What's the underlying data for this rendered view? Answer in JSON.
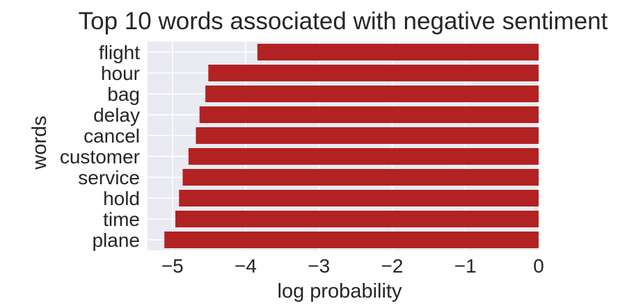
{
  "chart_data": {
    "type": "bar",
    "orientation": "horizontal",
    "title": "Top 10 words associated with negative sentiment",
    "xlabel": "log probability",
    "ylabel": "words",
    "categories": [
      "flight",
      "hour",
      "bag",
      "delay",
      "cancel",
      "customer",
      "service",
      "hold",
      "time",
      "plane"
    ],
    "values": [
      -3.84,
      -4.51,
      -4.55,
      -4.63,
      -4.68,
      -4.78,
      -4.86,
      -4.91,
      -4.96,
      -5.11
    ],
    "xlim": [
      -5.34,
      0
    ],
    "xticks": [
      -5,
      -4,
      -3,
      -2,
      -1,
      0
    ],
    "xtick_labels": [
      "−5",
      "−4",
      "−3",
      "−2",
      "−1",
      "0"
    ],
    "grid": true,
    "colors": {
      "bar": "#b22222",
      "plot_background": "#eaeaf2",
      "grid": "#ffffff",
      "text": "#262626"
    }
  }
}
